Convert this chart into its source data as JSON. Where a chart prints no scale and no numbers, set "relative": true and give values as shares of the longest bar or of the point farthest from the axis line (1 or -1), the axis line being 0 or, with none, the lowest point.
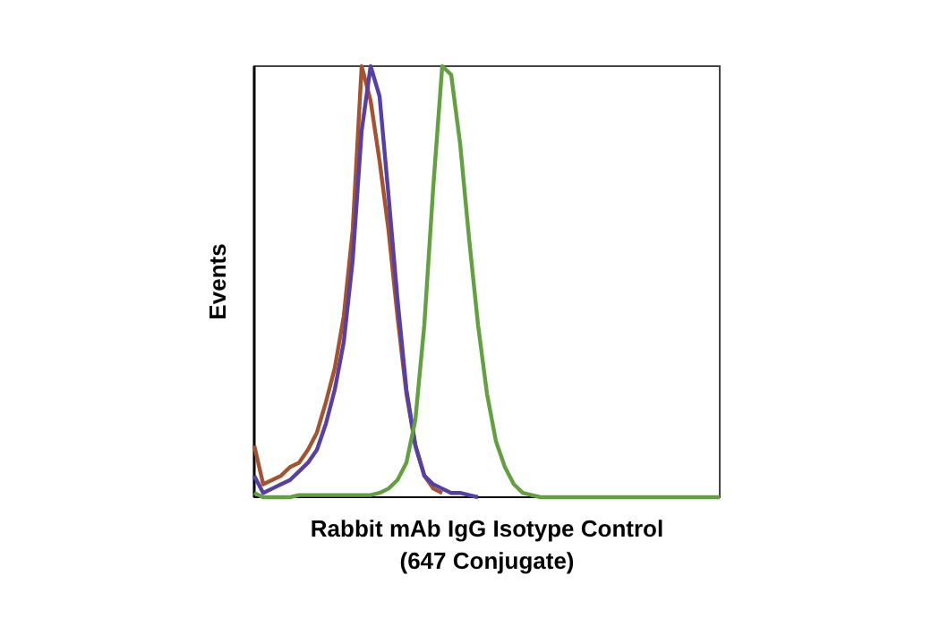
{
  "chart_data": {
    "type": "line",
    "relative": true,
    "xlabel": "Rabbit mAb IgG Isotype Control (647 Conjugate)",
    "ylabel": "Events",
    "line_style": "solid",
    "categories": [
      null,
      null,
      null,
      null,
      null,
      null,
      null,
      null,
      null,
      null,
      null,
      null,
      null,
      null,
      null,
      null,
      null,
      null,
      null,
      null,
      null,
      null,
      null,
      null,
      null,
      null,
      null,
      null,
      null,
      null,
      null,
      null,
      null,
      null,
      null,
      null,
      null,
      null,
      null,
      null,
      null,
      null,
      null,
      null,
      null,
      null,
      null,
      null,
      null,
      null,
      null,
      null,
      null
    ],
    "series": [
      {
        "color": "#a5522e",
        "values": [
          0.12,
          0.03,
          0.04,
          0.05,
          0.07,
          0.08,
          0.11,
          0.15,
          0.22,
          0.3,
          0.42,
          0.62,
          1,
          0.92,
          0.78,
          0.62,
          0.42,
          0.24,
          0.12,
          0.05,
          0.02,
          0.01,
          null,
          null,
          null,
          null,
          null,
          null,
          null,
          null,
          null,
          null,
          null,
          null,
          null,
          null,
          null,
          null,
          null,
          null,
          null,
          null,
          null,
          null,
          null,
          null,
          null,
          null,
          null,
          null,
          null,
          null,
          null
        ]
      },
      {
        "color": "#5440a8",
        "values": [
          0.05,
          0.01,
          0.02,
          0.03,
          0.04,
          0.06,
          0.08,
          0.11,
          0.17,
          0.25,
          0.36,
          0.55,
          0.85,
          1,
          0.93,
          0.7,
          0.46,
          0.25,
          0.12,
          0.05,
          0.03,
          0.02,
          0.01,
          0.01,
          0.005,
          0,
          null,
          null,
          null,
          null,
          null,
          null,
          null,
          null,
          null,
          null,
          null,
          null,
          null,
          null,
          null,
          null,
          null,
          null,
          null,
          null,
          null,
          null,
          null,
          null,
          null,
          null,
          null
        ]
      },
      {
        "color": "#62a040",
        "values": [
          0.01,
          0,
          0,
          0,
          0,
          0.005,
          0.005,
          0.005,
          0.005,
          0.005,
          0.005,
          0.005,
          0.005,
          0.005,
          0.01,
          0.02,
          0.04,
          0.08,
          0.18,
          0.4,
          0.72,
          1,
          0.98,
          0.82,
          0.6,
          0.4,
          0.24,
          0.13,
          0.07,
          0.03,
          0.01,
          0.005,
          0,
          0,
          0,
          0,
          0,
          0,
          0,
          0,
          0,
          0,
          0,
          0,
          0,
          0,
          0,
          0,
          0,
          0,
          0,
          0,
          0
        ]
      }
    ]
  }
}
